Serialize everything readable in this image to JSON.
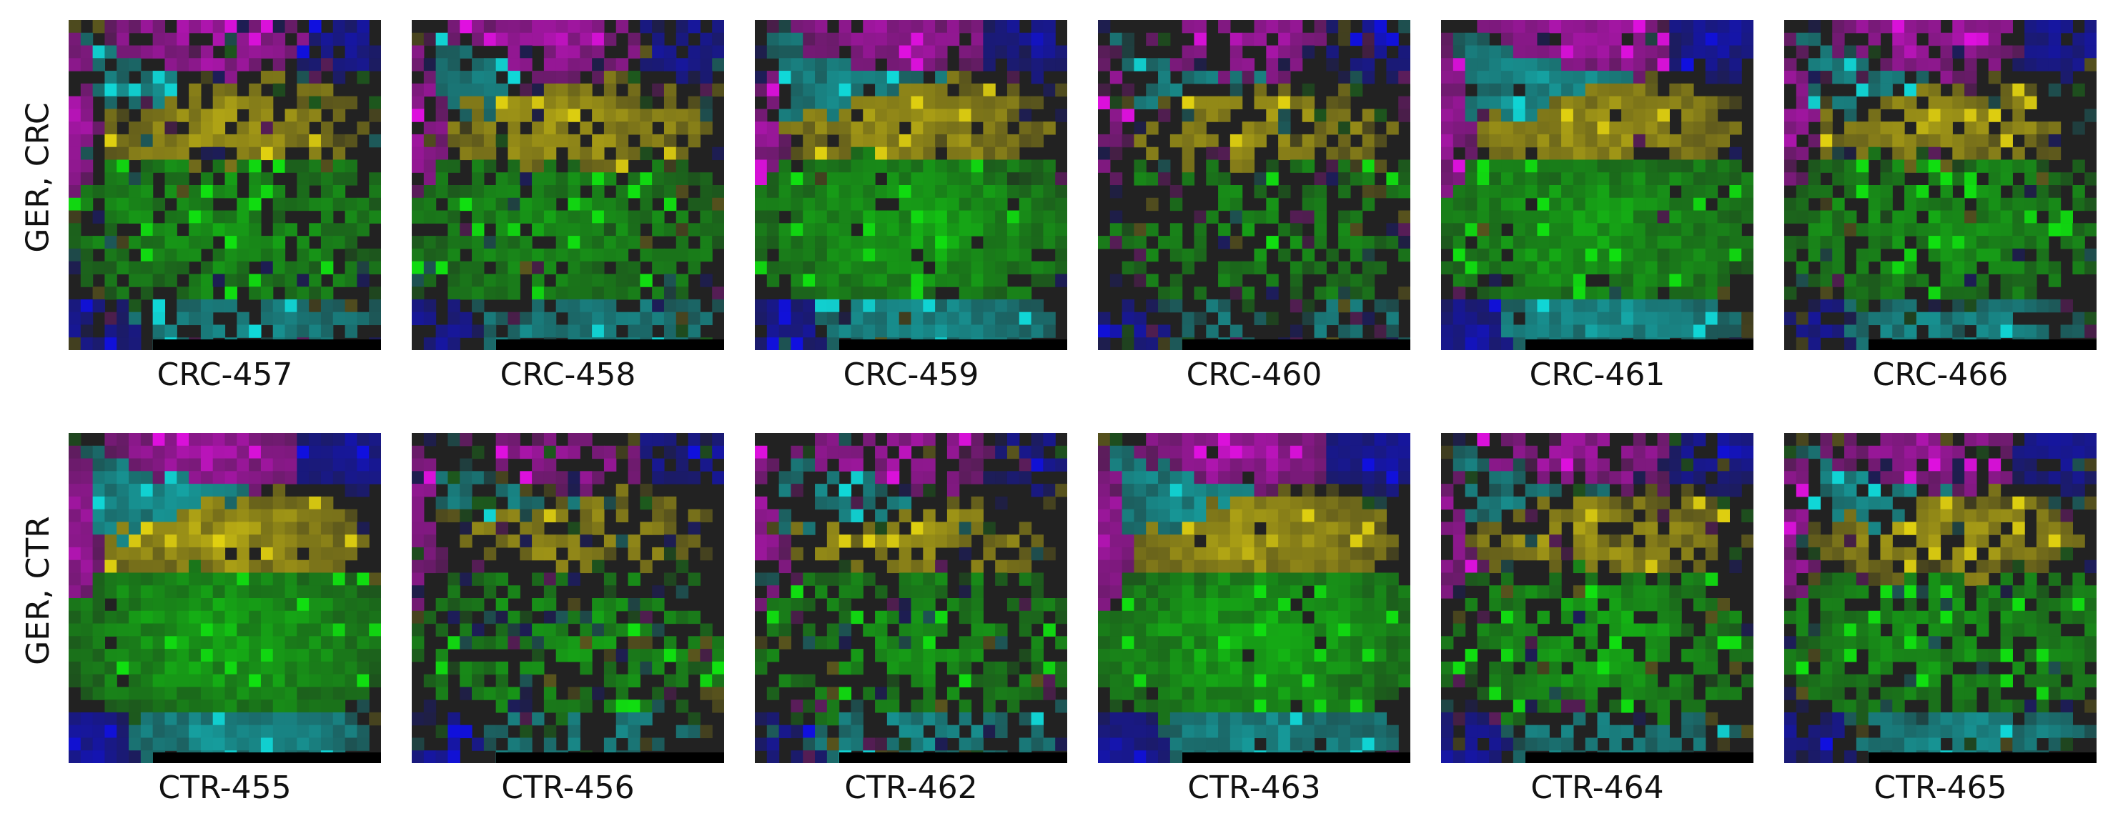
{
  "rows": [
    {
      "label": "GER, CRC",
      "panels": [
        {
          "name": "CRC-457",
          "seed": 457,
          "profile": {
            "magenta": 1.0,
            "blue": 0.6,
            "cyan": 0.5,
            "yellow": 0.9,
            "green": 0.6,
            "empty": 0.35
          }
        },
        {
          "name": "CRC-458",
          "seed": 458,
          "profile": {
            "magenta": 1.0,
            "blue": 0.9,
            "cyan": 0.6,
            "yellow": 0.9,
            "green": 0.5,
            "empty": 0.3
          }
        },
        {
          "name": "CRC-459",
          "seed": 459,
          "profile": {
            "magenta": 0.8,
            "blue": 0.9,
            "cyan": 0.8,
            "yellow": 0.8,
            "green": 0.9,
            "empty": 0.15
          }
        },
        {
          "name": "CRC-460",
          "seed": 460,
          "profile": {
            "magenta": 0.8,
            "blue": 0.7,
            "cyan": 0.4,
            "yellow": 0.8,
            "green": 0.4,
            "empty": 0.7
          }
        },
        {
          "name": "CRC-461",
          "seed": 461,
          "profile": {
            "magenta": 0.8,
            "blue": 1.0,
            "cyan": 1.0,
            "yellow": 0.9,
            "green": 0.8,
            "empty": 0.1
          }
        },
        {
          "name": "CRC-466",
          "seed": 466,
          "profile": {
            "magenta": 1.0,
            "blue": 0.8,
            "cyan": 0.7,
            "yellow": 0.8,
            "green": 0.6,
            "empty": 0.4
          }
        }
      ]
    },
    {
      "label": "GER, CTR",
      "panels": [
        {
          "name": "CTR-455",
          "seed": 455,
          "profile": {
            "magenta": 1.0,
            "blue": 1.0,
            "cyan": 1.0,
            "yellow": 1.0,
            "green": 1.0,
            "empty": 0.02
          }
        },
        {
          "name": "CTR-456",
          "seed": 456,
          "profile": {
            "magenta": 0.6,
            "blue": 0.8,
            "cyan": 0.5,
            "yellow": 0.6,
            "green": 0.6,
            "empty": 0.6
          }
        },
        {
          "name": "CTR-462",
          "seed": 462,
          "profile": {
            "magenta": 0.9,
            "blue": 0.4,
            "cyan": 0.7,
            "yellow": 0.7,
            "green": 0.6,
            "empty": 0.55
          }
        },
        {
          "name": "CTR-463",
          "seed": 463,
          "profile": {
            "magenta": 1.0,
            "blue": 1.0,
            "cyan": 0.8,
            "yellow": 1.0,
            "green": 1.0,
            "empty": 0.05
          }
        },
        {
          "name": "CTR-464",
          "seed": 464,
          "profile": {
            "magenta": 0.8,
            "blue": 0.9,
            "cyan": 0.5,
            "yellow": 0.8,
            "green": 0.8,
            "empty": 0.45
          }
        },
        {
          "name": "CTR-465",
          "seed": 465,
          "profile": {
            "magenta": 0.8,
            "blue": 0.8,
            "cyan": 0.7,
            "yellow": 0.9,
            "green": 0.6,
            "empty": 0.35
          }
        }
      ]
    }
  ],
  "chart_data": {
    "type": "heatmap",
    "grid_size": 26,
    "color_classes": {
      "background": "#222222",
      "magenta": "#e010e0",
      "blue": "#1010e0",
      "cyan": "#10d8d8",
      "yellow": "#e0d010",
      "green": "#10e010"
    },
    "grid": false,
    "legend": "none",
    "rows": [
      "GER, CRC",
      "GER, CTR"
    ],
    "panels": [
      "CRC-457",
      "CRC-458",
      "CRC-459",
      "CRC-460",
      "CRC-461",
      "CRC-466",
      "CTR-455",
      "CTR-456",
      "CTR-462",
      "CTR-463",
      "CTR-464",
      "CTR-465"
    ]
  }
}
